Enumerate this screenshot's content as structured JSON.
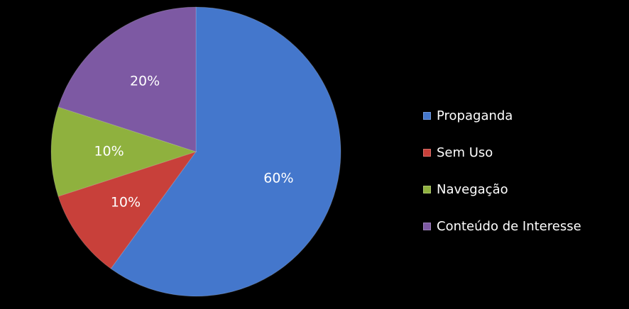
{
  "chart_data": {
    "type": "pie",
    "title": "",
    "slices": [
      {
        "label": "Propaganda",
        "value": 60,
        "display": "60%",
        "color": "#4477CC"
      },
      {
        "label": "Sem Uso",
        "value": 10,
        "display": "10%",
        "color": "#C8403A"
      },
      {
        "label": "Navegação",
        "value": 10,
        "display": "10%",
        "color": "#8FB13E"
      },
      {
        "label": "Conteúdo de Interesse",
        "value": 20,
        "display": "20%",
        "color": "#7D59A3"
      }
    ],
    "legend_position": "right",
    "background_color": "#000000"
  }
}
